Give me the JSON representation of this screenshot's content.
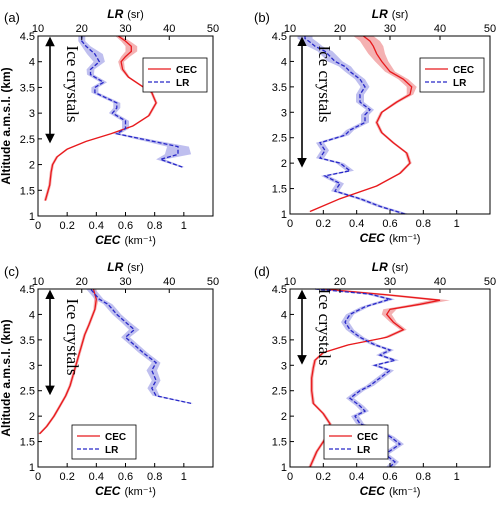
{
  "chart_data": [
    {
      "type": "line",
      "panel_label": "(a)",
      "ylabel": "Altitude a.m.s.l. (km)",
      "xlabel_bottom": "CEC",
      "xlabel_bottom_unit": "(km⁻¹)",
      "xlabel_top": "LR",
      "xlabel_top_unit": "(sr)",
      "xlim_bottom": [
        0,
        1.2
      ],
      "xticks_bottom": [
        "0",
        "0.2",
        "0.4",
        "0.6",
        "0.8",
        "1"
      ],
      "xlim_top": [
        10,
        50
      ],
      "xticks_top": [
        "10",
        "20",
        "30",
        "40",
        "50"
      ],
      "ylim": [
        1,
        4.5
      ],
      "yticks": [
        "1",
        "1.5",
        "2",
        "2.5",
        "3",
        "3.5",
        "4",
        "4.5"
      ],
      "legend": {
        "position": "top-right",
        "entries": [
          "CEC",
          "LR"
        ]
      },
      "annotation": "Ice crystals",
      "arrow_range": [
        2.45,
        4.45
      ],
      "series": [
        {
          "name": "CEC",
          "axis": "bottom",
          "color": "#e8191c",
          "band_color": "#f2a3a5",
          "x": [
            0.05,
            0.08,
            0.09,
            0.1,
            0.13,
            0.2,
            0.33,
            0.5,
            0.65,
            0.76,
            0.81,
            0.78,
            0.7,
            0.62,
            0.58,
            0.57,
            0.6,
            0.64,
            0.64,
            0.6,
            0.55
          ],
          "y": [
            1.3,
            1.6,
            1.85,
            2.0,
            2.15,
            2.3,
            2.45,
            2.6,
            2.75,
            2.95,
            3.2,
            3.4,
            3.55,
            3.7,
            3.85,
            4.0,
            4.1,
            4.2,
            4.3,
            4.4,
            4.5
          ],
          "band": [
            0.01,
            0.01,
            0.01,
            0.01,
            0.01,
            0.01,
            0.01,
            0.01,
            0.01,
            0.01,
            0.01,
            0.01,
            0.01,
            0.01,
            0.015,
            0.02,
            0.03,
            0.04,
            0.04,
            0.03,
            0.02
          ]
        },
        {
          "name": "LR",
          "axis": "top",
          "color": "#2828c8",
          "band_color": "#b4b4ec",
          "x": [
            43,
            38,
            42,
            42,
            28,
            30,
            30,
            27,
            28,
            28,
            23,
            23,
            25,
            22,
            22,
            24,
            23,
            21,
            20,
            20
          ],
          "y": [
            1.95,
            2.1,
            2.2,
            2.35,
            2.6,
            2.7,
            2.85,
            3.0,
            3.1,
            3.2,
            3.4,
            3.5,
            3.6,
            3.75,
            3.85,
            4.0,
            4.15,
            4.3,
            4.4,
            4.5
          ],
          "band": [
            0.5,
            1.0,
            3.0,
            2.5,
            0.8,
            0.8,
            0.8,
            0.8,
            0.8,
            0.8,
            0.8,
            0.8,
            0.8,
            0.8,
            0.9,
            1.3,
            1.8,
            1.0,
            0.8,
            0.8
          ]
        }
      ]
    },
    {
      "type": "line",
      "panel_label": "(b)",
      "ylabel": "",
      "xlabel_bottom": "CEC",
      "xlabel_bottom_unit": "(km⁻¹)",
      "xlabel_top": "LR",
      "xlabel_top_unit": "(sr)",
      "xlim_bottom": [
        0,
        1.2
      ],
      "xticks_bottom": [
        "0",
        "0.2",
        "0.4",
        "0.6",
        "0.8",
        "1"
      ],
      "xlim_top": [
        10,
        50
      ],
      "xticks_top": [
        "10",
        "20",
        "30",
        "40",
        "50"
      ],
      "ylim": [
        1,
        4.5
      ],
      "yticks": [
        "1",
        "1.5",
        "2",
        "2.5",
        "3",
        "3.5",
        "4",
        "4.5"
      ],
      "legend": {
        "position": "top-right",
        "entries": [
          "CEC",
          "LR"
        ]
      },
      "annotation": "Ice crystals",
      "arrow_range": [
        1.95,
        4.45
      ],
      "series": [
        {
          "name": "CEC",
          "axis": "bottom",
          "color": "#e8191c",
          "band_color": "#f2a3a5",
          "x": [
            0.12,
            0.3,
            0.52,
            0.66,
            0.72,
            0.7,
            0.62,
            0.55,
            0.52,
            0.55,
            0.64,
            0.72,
            0.73,
            0.68,
            0.6,
            0.55,
            0.52,
            0.5,
            0.48,
            0.44
          ],
          "y": [
            1.05,
            1.3,
            1.55,
            1.8,
            2.0,
            2.2,
            2.4,
            2.6,
            2.8,
            3.0,
            3.2,
            3.35,
            3.5,
            3.65,
            3.8,
            4.0,
            4.15,
            4.3,
            4.4,
            4.5
          ],
          "band": [
            0.01,
            0.01,
            0.01,
            0.01,
            0.01,
            0.01,
            0.01,
            0.01,
            0.01,
            0.01,
            0.015,
            0.02,
            0.03,
            0.03,
            0.03,
            0.04,
            0.05,
            0.06,
            0.06,
            0.06
          ]
        },
        {
          "name": "LR",
          "axis": "top",
          "color": "#2828c8",
          "band_color": "#b4b4ec",
          "x": [
            33,
            28,
            24,
            19,
            20,
            17,
            22,
            20,
            16,
            17,
            16,
            21,
            22,
            25,
            25,
            26,
            24,
            24,
            25,
            24,
            22,
            21,
            19,
            18,
            17,
            15,
            14,
            13,
            13
          ],
          "y": [
            1.0,
            1.15,
            1.3,
            1.45,
            1.6,
            1.75,
            1.85,
            2.0,
            2.1,
            2.25,
            2.4,
            2.55,
            2.65,
            2.8,
            2.95,
            3.05,
            3.2,
            3.35,
            3.5,
            3.65,
            3.8,
            3.9,
            4.0,
            4.1,
            4.2,
            4.3,
            4.38,
            4.45,
            4.5
          ],
          "band": [
            0.8,
            0.8,
            0.8,
            0.8,
            0.8,
            0.8,
            0.8,
            0.8,
            0.8,
            0.8,
            0.8,
            0.8,
            0.8,
            0.8,
            0.8,
            0.8,
            0.8,
            0.8,
            0.9,
            1.0,
            1.0,
            1.2,
            1.5,
            1.5,
            1.5,
            1.5,
            1.5,
            1.5,
            1.5
          ]
        }
      ]
    },
    {
      "type": "line",
      "panel_label": "(c)",
      "ylabel": "Altitude a.m.s.l. (km)",
      "xlabel_bottom": "CEC",
      "xlabel_bottom_unit": "(km⁻¹)",
      "xlabel_top": "LR",
      "xlabel_top_unit": "(sr)",
      "xlim_bottom": [
        0,
        1.2
      ],
      "xticks_bottom": [
        "0",
        "0.2",
        "0.4",
        "0.6",
        "0.8",
        "1"
      ],
      "xlim_top": [
        10,
        50
      ],
      "xticks_top": [
        "10",
        "20",
        "30",
        "40",
        "50"
      ],
      "ylim": [
        1,
        4.5
      ],
      "yticks": [
        "1",
        "1.5",
        "2",
        "2.5",
        "3",
        "3.5",
        "4",
        "4.5"
      ],
      "legend": {
        "position": "bottom-left",
        "entries": [
          "CEC",
          "LR"
        ]
      },
      "annotation": "Ice crystals",
      "arrow_range": [
        2.45,
        4.45
      ],
      "series": [
        {
          "name": "CEC",
          "axis": "bottom",
          "color": "#e8191c",
          "band_color": "#f2a3a5",
          "x": [
            0.01,
            0.06,
            0.11,
            0.15,
            0.19,
            0.22,
            0.24,
            0.26,
            0.28,
            0.3,
            0.32,
            0.35,
            0.39,
            0.4,
            0.38
          ],
          "y": [
            1.65,
            1.8,
            2.0,
            2.2,
            2.4,
            2.6,
            2.8,
            3.0,
            3.2,
            3.4,
            3.6,
            3.8,
            4.1,
            4.3,
            4.5
          ],
          "band": [
            0.01,
            0.01,
            0.01,
            0.01,
            0.01,
            0.01,
            0.01,
            0.01,
            0.01,
            0.01,
            0.01,
            0.01,
            0.01,
            0.015,
            0.02
          ]
        },
        {
          "name": "LR",
          "axis": "top",
          "color": "#2828c8",
          "band_color": "#b4b4ec",
          "x": [
            45,
            37,
            36,
            37,
            36,
            37,
            34,
            32,
            30,
            32,
            30,
            28,
            27,
            26,
            24,
            23,
            22
          ],
          "y": [
            2.25,
            2.4,
            2.55,
            2.7,
            2.9,
            3.05,
            3.25,
            3.4,
            3.55,
            3.7,
            3.85,
            4.0,
            4.1,
            4.2,
            4.3,
            4.4,
            4.5
          ],
          "band": [
            0.5,
            0.8,
            1.0,
            1.0,
            1.2,
            1.0,
            1.0,
            1.0,
            1.0,
            1.2,
            1.0,
            1.0,
            1.0,
            1.0,
            1.0,
            1.0,
            1.0
          ]
        }
      ]
    },
    {
      "type": "line",
      "panel_label": "(d)",
      "ylabel": "",
      "xlabel_bottom": "CEC",
      "xlabel_bottom_unit": "(km⁻¹)",
      "xlabel_top": "LR",
      "xlabel_top_unit": "(sr)",
      "xlim_bottom": [
        0,
        1.2
      ],
      "xticks_bottom": [
        "0",
        "0.2",
        "0.4",
        "0.6",
        "0.8",
        "1"
      ],
      "xlim_top": [
        10,
        50
      ],
      "xticks_top": [
        "10",
        "20",
        "30",
        "40",
        "50"
      ],
      "ylim": [
        1,
        4.5
      ],
      "yticks": [
        "1",
        "1.5",
        "2",
        "2.5",
        "3",
        "3.5",
        "4",
        "4.5"
      ],
      "legend": {
        "position": "bottom-left",
        "entries": [
          "CEC",
          "LR"
        ]
      },
      "annotation": "Ice crystals",
      "arrow_range": [
        3.05,
        4.45
      ],
      "series": [
        {
          "name": "CEC",
          "axis": "bottom",
          "color": "#e8191c",
          "band_color": "#f2a3a5",
          "x": [
            0.12,
            0.16,
            0.22,
            0.24,
            0.2,
            0.14,
            0.13,
            0.13,
            0.14,
            0.15,
            0.2,
            0.35,
            0.58,
            0.68,
            0.62,
            0.58,
            0.6,
            0.78,
            0.9,
            0.6,
            0.2
          ],
          "y": [
            1.0,
            1.3,
            1.6,
            1.85,
            2.05,
            2.25,
            2.5,
            2.75,
            2.95,
            3.1,
            3.25,
            3.4,
            3.55,
            3.7,
            3.85,
            4.0,
            4.1,
            4.2,
            4.28,
            4.38,
            4.5
          ],
          "band": [
            0.01,
            0.01,
            0.01,
            0.01,
            0.01,
            0.01,
            0.01,
            0.01,
            0.01,
            0.01,
            0.01,
            0.015,
            0.02,
            0.02,
            0.02,
            0.03,
            0.04,
            0.05,
            0.06,
            0.06,
            0.05
          ]
        },
        {
          "name": "LR",
          "axis": "top",
          "color": "#2828c8",
          "band_color": "#b4b4ec",
          "x": [
            30,
            31,
            29,
            32,
            30,
            27,
            24,
            23,
            25,
            24,
            22,
            24,
            26,
            28,
            30,
            27,
            31,
            28,
            30,
            27,
            24,
            22,
            21,
            22,
            25,
            30,
            26,
            15
          ],
          "y": [
            1.0,
            1.1,
            1.25,
            1.45,
            1.6,
            1.75,
            1.85,
            2.0,
            2.1,
            2.2,
            2.35,
            2.5,
            2.6,
            2.75,
            2.9,
            3.0,
            3.1,
            3.2,
            3.3,
            3.4,
            3.55,
            3.7,
            3.85,
            4.0,
            4.15,
            4.3,
            4.4,
            4.5
          ],
          "band": [
            0.8,
            0.8,
            0.8,
            0.8,
            0.8,
            0.8,
            0.8,
            0.8,
            0.8,
            0.8,
            0.8,
            0.8,
            0.8,
            0.8,
            0.8,
            0.8,
            0.8,
            0.8,
            0.8,
            0.8,
            0.8,
            0.8,
            0.8,
            0.8,
            0.8,
            1.0,
            1.0,
            1.0
          ]
        }
      ]
    }
  ]
}
